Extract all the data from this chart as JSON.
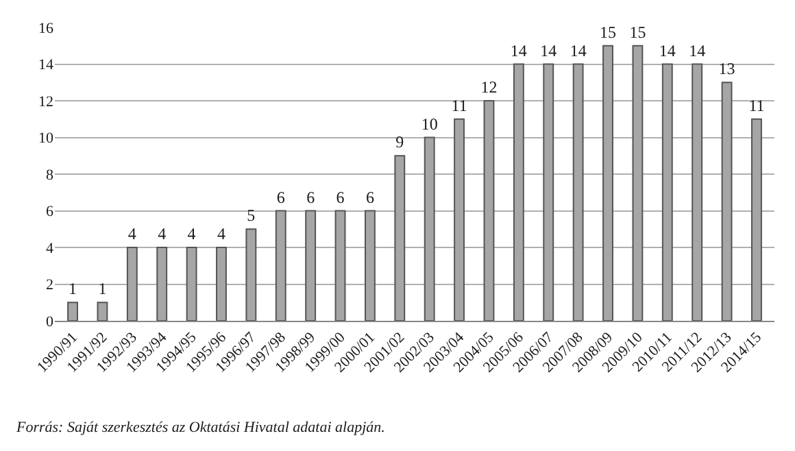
{
  "chart_data": {
    "type": "bar",
    "categories": [
      "1990/91",
      "1991/92",
      "1992/93",
      "1993/94",
      "1994/95",
      "1995/96",
      "1996/97",
      "1997/98",
      "1998/99",
      "1999/00",
      "2000/01",
      "2001/02",
      "2002/03",
      "2003/04",
      "2004/05",
      "2005/06",
      "2006/07",
      "2007/08",
      "2008/09",
      "2009/10",
      "2010/11",
      "2011/12",
      "2012/13",
      "2014/15"
    ],
    "values": [
      1,
      1,
      4,
      4,
      4,
      4,
      5,
      6,
      6,
      6,
      6,
      9,
      10,
      11,
      12,
      14,
      14,
      14,
      15,
      15,
      14,
      14,
      13,
      11
    ],
    "color": "#a6a6a6",
    "ylim": [
      0,
      16
    ],
    "yticks": [
      0,
      2,
      4,
      6,
      8,
      10,
      12,
      14,
      16
    ],
    "grid": "y",
    "data_labels": true,
    "legend": false,
    "annotations": [
      "Forrás: Saját szerkesztés az Oktatási Hivatal adatai alapján."
    ]
  }
}
